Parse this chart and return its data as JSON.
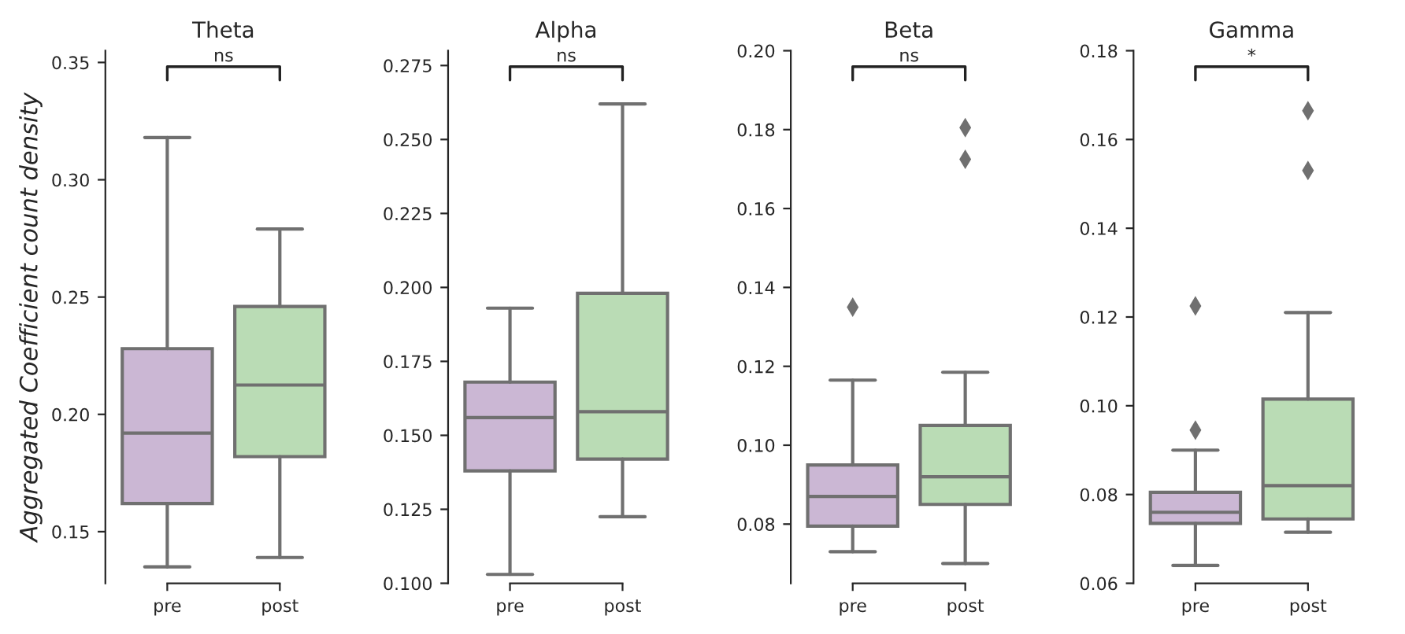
{
  "chart_data": [
    {
      "type": "box",
      "title": "Theta",
      "ylabel": "Aggregated Coefficient count density",
      "categories": [
        "pre",
        "post"
      ],
      "colors": [
        "#cbb7d4",
        "#badcb5"
      ],
      "marker": "diamond",
      "annotations": [
        "ns"
      ],
      "ylim": [
        0.128,
        0.355
      ],
      "yticks": [
        {
          "value": 0.15,
          "label": "0.15"
        },
        {
          "value": 0.2,
          "label": "0.20"
        },
        {
          "value": 0.25,
          "label": "0.25"
        },
        {
          "value": 0.3,
          "label": "0.30"
        },
        {
          "value": 0.35,
          "label": "0.35"
        }
      ],
      "boxes": [
        {
          "low": 0.135,
          "q1": 0.162,
          "median": 0.192,
          "q3": 0.228,
          "high": 0.318
        },
        {
          "low": 0.139,
          "q1": 0.182,
          "median": 0.2125,
          "q3": 0.246,
          "high": 0.279
        }
      ]
    },
    {
      "type": "box",
      "title": "Alpha",
      "categories": [
        "pre",
        "post"
      ],
      "colors": [
        "#cbb7d4",
        "#badcb5"
      ],
      "marker": "diamond",
      "annotations": [
        "ns"
      ],
      "ylim": [
        0.1,
        0.28
      ],
      "yticks": [
        {
          "value": 0.1,
          "label": "0.100"
        },
        {
          "value": 0.125,
          "label": "0.125"
        },
        {
          "value": 0.15,
          "label": "0.150"
        },
        {
          "value": 0.175,
          "label": "0.175"
        },
        {
          "value": 0.2,
          "label": "0.200"
        },
        {
          "value": 0.225,
          "label": "0.225"
        },
        {
          "value": 0.25,
          "label": "0.250"
        },
        {
          "value": 0.275,
          "label": "0.275"
        }
      ],
      "boxes": [
        {
          "low": 0.103,
          "q1": 0.138,
          "median": 0.156,
          "q3": 0.168,
          "high": 0.193
        },
        {
          "low": 0.1225,
          "q1": 0.142,
          "median": 0.158,
          "q3": 0.198,
          "high": 0.262
        }
      ]
    },
    {
      "type": "box",
      "title": "Beta",
      "categories": [
        "pre",
        "post"
      ],
      "colors": [
        "#cbb7d4",
        "#badcb5"
      ],
      "marker": "diamond",
      "annotations": [
        "ns"
      ],
      "ylim": [
        0.065,
        0.2
      ],
      "yticks": [
        {
          "value": 0.08,
          "label": "0.08"
        },
        {
          "value": 0.1,
          "label": "0.10"
        },
        {
          "value": 0.12,
          "label": "0.12"
        },
        {
          "value": 0.14,
          "label": "0.14"
        },
        {
          "value": 0.16,
          "label": "0.16"
        },
        {
          "value": 0.18,
          "label": "0.18"
        },
        {
          "value": 0.2,
          "label": "0.20"
        }
      ],
      "boxes": [
        {
          "low": 0.073,
          "q1": 0.0795,
          "median": 0.087,
          "q3": 0.095,
          "high": 0.1165,
          "outliers": [
            0.135
          ]
        },
        {
          "low": 0.07,
          "q1": 0.085,
          "median": 0.092,
          "q3": 0.105,
          "high": 0.1185,
          "outliers": [
            0.1725,
            0.1805
          ]
        }
      ]
    },
    {
      "type": "box",
      "title": "Gamma",
      "categories": [
        "pre",
        "post"
      ],
      "colors": [
        "#cbb7d4",
        "#badcb5"
      ],
      "marker": "diamond",
      "annotations": [
        "*"
      ],
      "ylim": [
        0.06,
        0.18
      ],
      "yticks": [
        {
          "value": 0.06,
          "label": "0.06"
        },
        {
          "value": 0.08,
          "label": "0.08"
        },
        {
          "value": 0.1,
          "label": "0.10"
        },
        {
          "value": 0.12,
          "label": "0.12"
        },
        {
          "value": 0.14,
          "label": "0.14"
        },
        {
          "value": 0.16,
          "label": "0.16"
        },
        {
          "value": 0.18,
          "label": "0.18"
        }
      ],
      "boxes": [
        {
          "low": 0.064,
          "q1": 0.0735,
          "median": 0.076,
          "q3": 0.0805,
          "high": 0.09,
          "outliers": [
            0.0945,
            0.1225
          ]
        },
        {
          "low": 0.0715,
          "q1": 0.0745,
          "median": 0.082,
          "q3": 0.1015,
          "high": 0.121,
          "outliers": [
            0.153,
            0.1665
          ]
        }
      ]
    }
  ]
}
